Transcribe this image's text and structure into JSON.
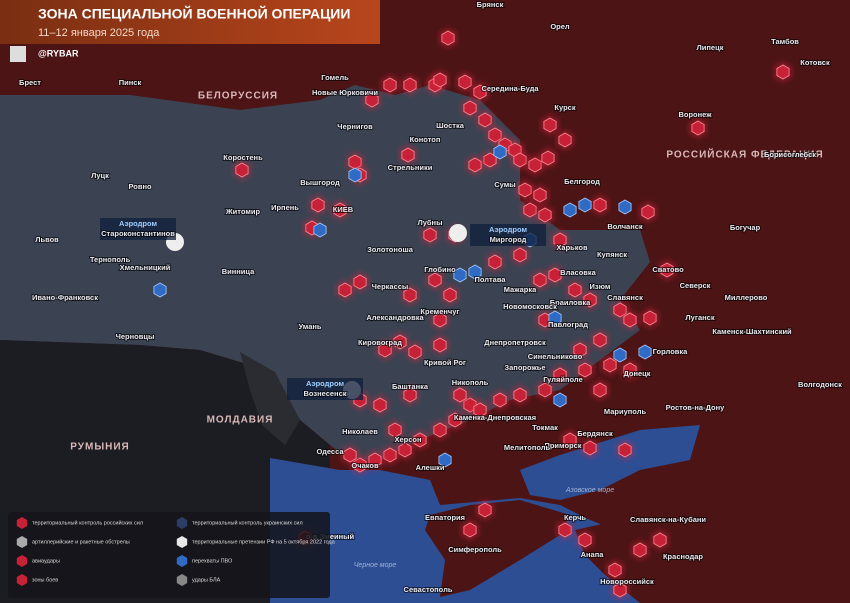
{
  "header": {
    "title": "ЗОНА СПЕЦИАЛЬНОЙ ВОЕННОЙ ОПЕРАЦИИ",
    "date": "11–12 января 2025 года",
    "handle": "@RYBAR"
  },
  "map": {
    "labels": [
      "БЕЛОРУССИЯ",
      "РОССИЙСКАЯ ФЕДЕРАЦИЯ",
      "МОЛДАВИЯ",
      "РУМЫНИЯ",
      "Азовское море",
      "Черное море",
      "Брест",
      "Пинск",
      "Гомель",
      "Брянск",
      "Орел",
      "Липецк",
      "Тамбов",
      "Котовск",
      "Курск",
      "Воронеж",
      "Белгород",
      "Борисоглебск",
      "Богучар",
      "Новые Юрковичи",
      "Середина-Буда",
      "Чернигов",
      "Шостка",
      "Конотоп",
      "Стрельники",
      "Сумы",
      "Коростень",
      "Луцк",
      "Ровно",
      "Житомир",
      "Ирпень",
      "Вышгород",
      "КИЕВ",
      "Волчанск",
      "Лубны",
      "Львов",
      "Тернополь",
      "Хмельницкий",
      "Винница",
      "Ивано-Франковск",
      "Черновцы",
      "Харьков",
      "Купянск",
      "Сватово",
      "Полтава",
      "Глобино",
      "Золотоноша",
      "Черкассы",
      "Мажарка",
      "Власовка",
      "Изюм",
      "Браиловка",
      "Славянск",
      "Северск",
      "Луганск",
      "Миллерово",
      "Новомосковск",
      "Кременчуг",
      "Александровка",
      "Умань",
      "Павлоград",
      "Днепропетровск",
      "Кировоград",
      "Горловка",
      "Синельниково",
      "Каменск-Шахтинский",
      "Кривой Рог",
      "Запорожье",
      "Гуляйполе",
      "Донецк",
      "Волгодонск",
      "Баштанка",
      "Николаев",
      "Никополь",
      "Каменка-Днепровская",
      "Мариуполь",
      "Ростов-на-Дону",
      "Токмак",
      "Бердянск",
      "Приморск",
      "Херсон",
      "Мелитополь",
      "Одесса",
      "Очаков",
      "Алешки",
      "Евпатория",
      "о-в Змеиный",
      "Керчь",
      "Славянск-на-Кубани",
      "Симферополь",
      "Анапа",
      "Краснодар",
      "Новороссийск",
      "Севастополь"
    ],
    "airfields": [
      [
        "Аэродром",
        "Староконстантинов"
      ],
      [
        "Аэродром",
        "Миргород"
      ],
      [
        "Аэродром",
        "Вознесенск"
      ]
    ]
  },
  "legend": [
    "территориальный контроль российских сил",
    "территориальный контроль украинских сил",
    "артиллерийские и ракетные обстрелы",
    "территориальные претензии РФ на 5 октября 2022 года",
    "авиаудары",
    "перехваты ПВО",
    "зоны боев",
    "удары БЛА"
  ]
}
